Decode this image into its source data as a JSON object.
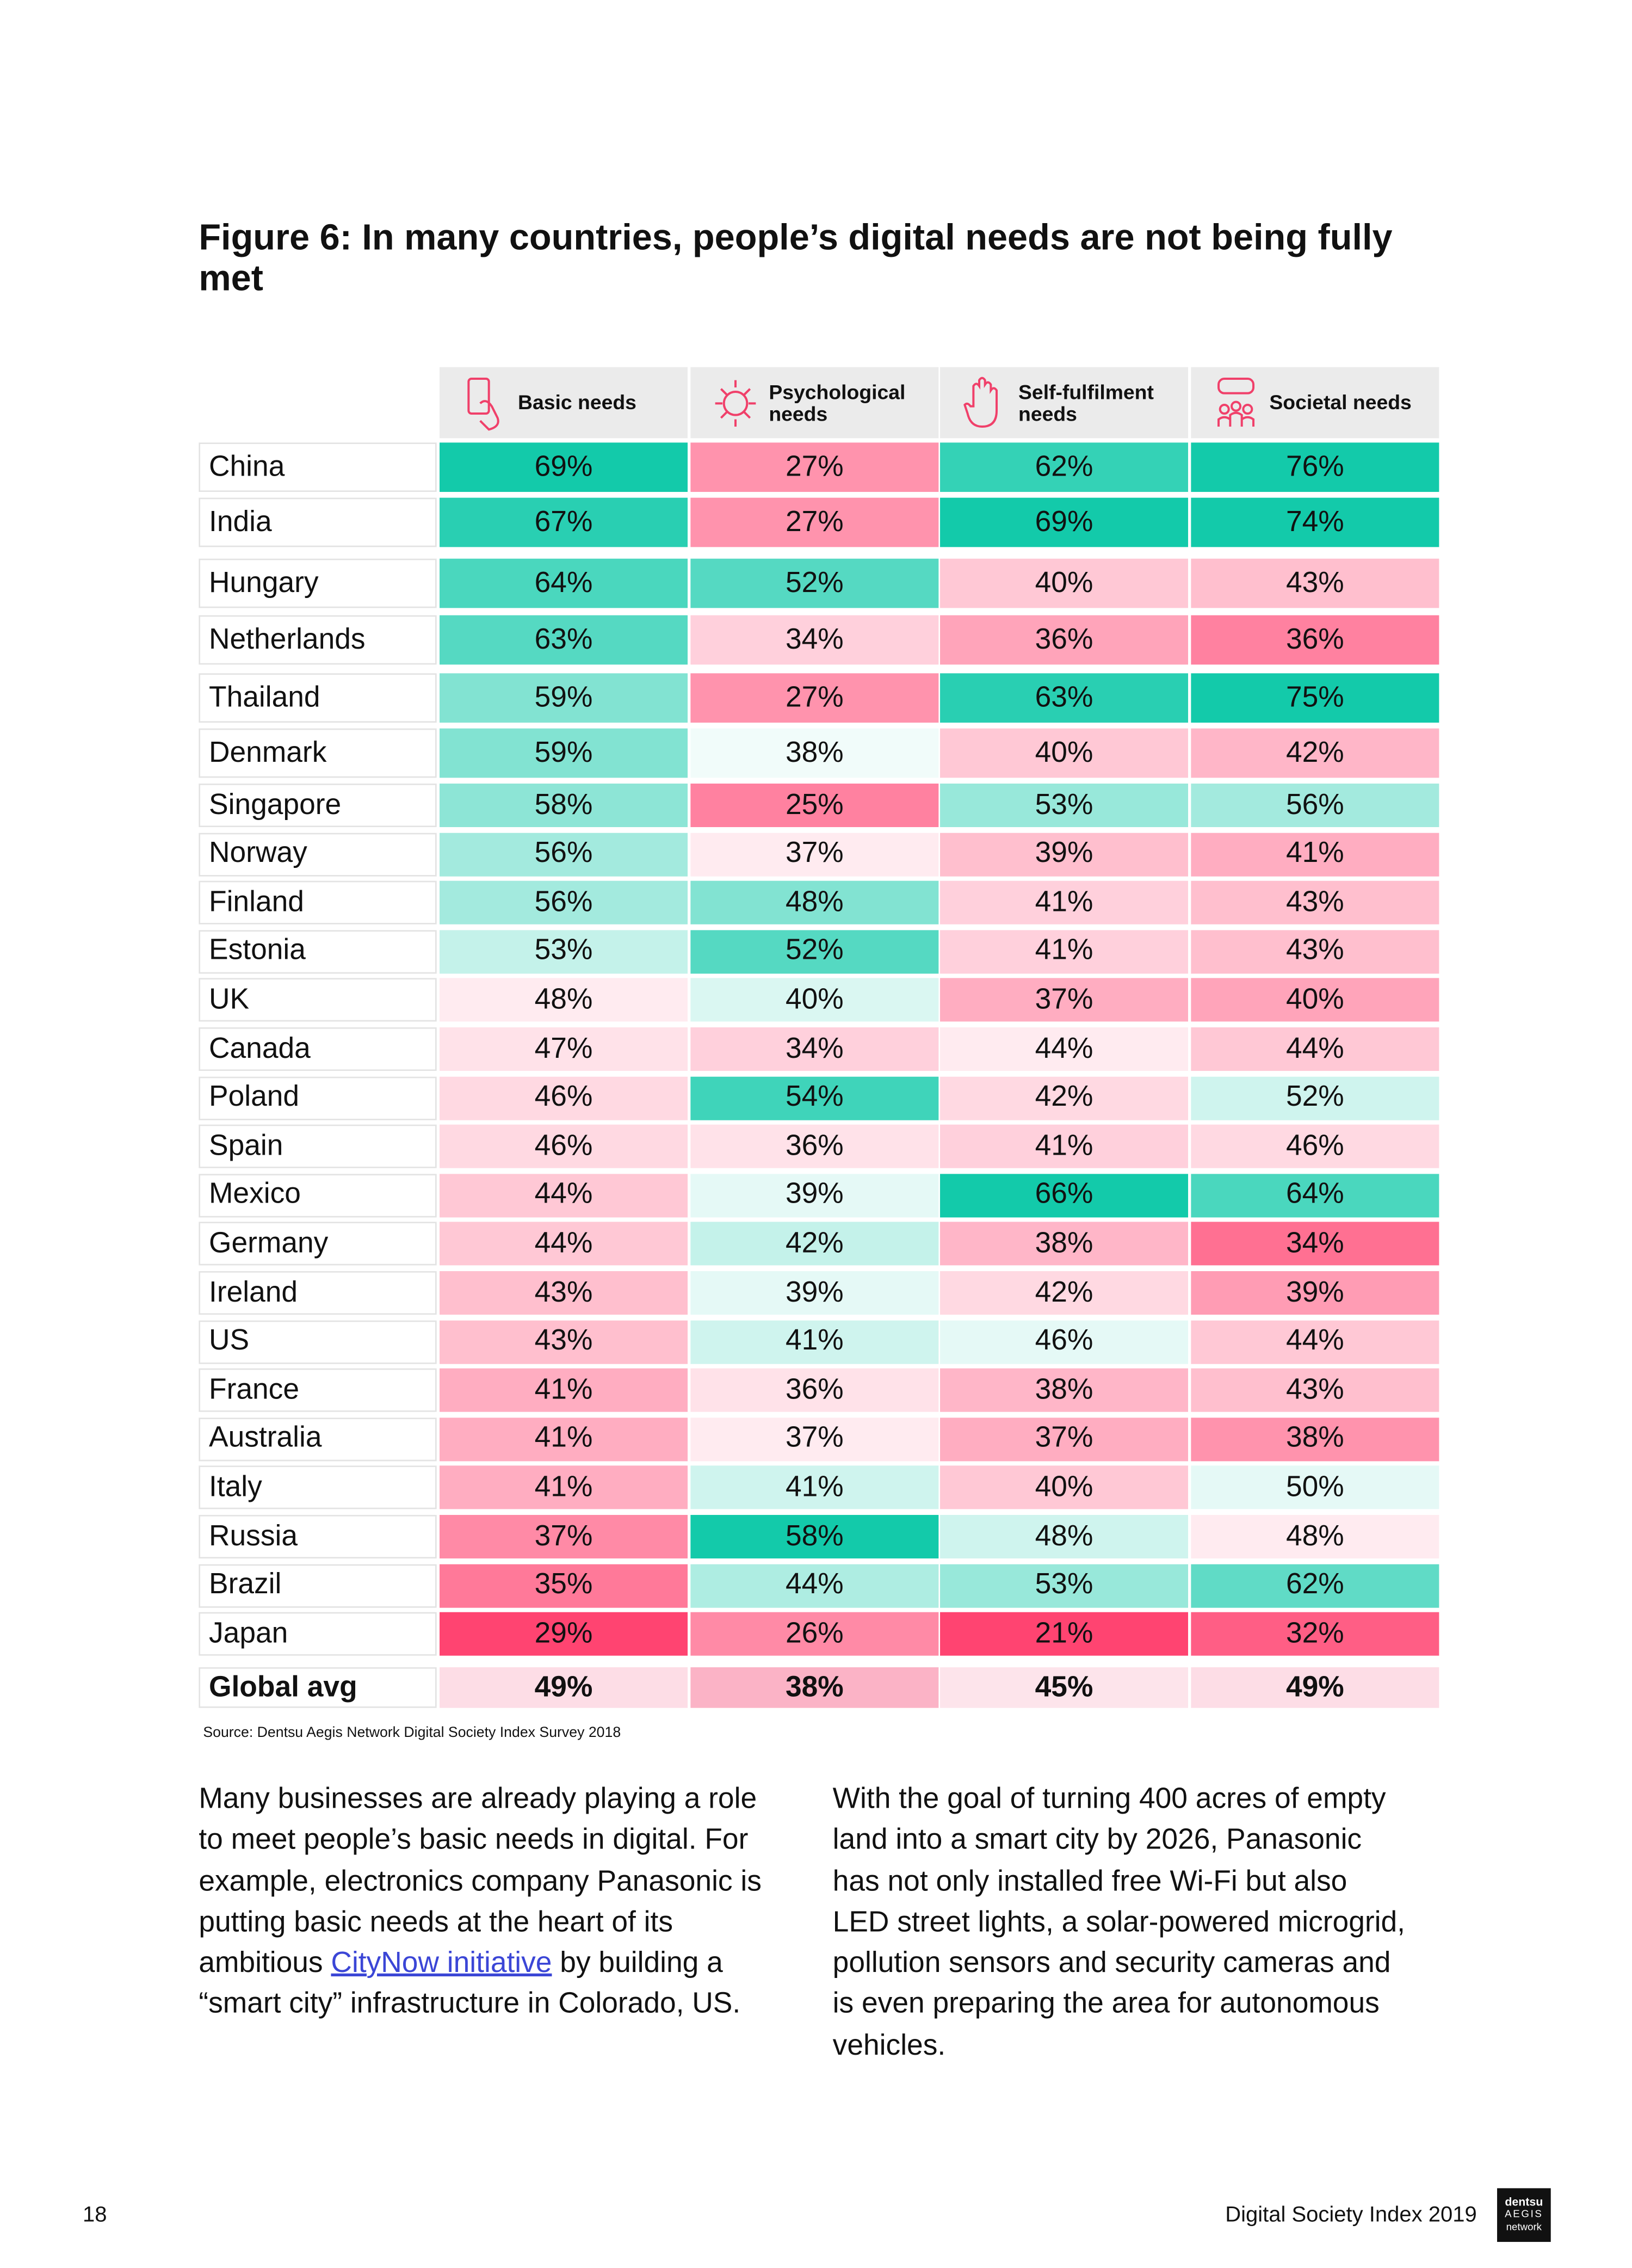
{
  "figure": {
    "title": "Figure 6: In many countries, people’s digital needs are not being fully met",
    "source": "Source: Dentsu Aegis Network Digital Society Index Survey 2018"
  },
  "table": {
    "header": [
      "Basic needs",
      "Psychological needs",
      "Self-fulfilment needs",
      "Societal needs"
    ],
    "rows": [
      [
        "China",
        "69%",
        "27%",
        "62%",
        "76%"
      ],
      [
        "India",
        "67%",
        "27%",
        "69%",
        "74%"
      ],
      [
        "Hungary",
        "64%",
        "52%",
        "40%",
        "43%"
      ],
      [
        "Netherlands",
        "63%",
        "34%",
        "36%",
        "36%"
      ],
      [
        "Thailand",
        "59%",
        "27%",
        "63%",
        "75%"
      ],
      [
        "Denmark",
        "59%",
        "38%",
        "40%",
        "42%"
      ],
      [
        "Singapore",
        "58%",
        "25%",
        "53%",
        "56%"
      ],
      [
        "Norway",
        "56%",
        "37%",
        "39%",
        "41%"
      ],
      [
        "Finland",
        "56%",
        "48%",
        "41%",
        "43%"
      ],
      [
        "Estonia",
        "53%",
        "52%",
        "41%",
        "43%"
      ],
      [
        "UK",
        "48%",
        "40%",
        "37%",
        "40%"
      ],
      [
        "Canada",
        "47%",
        "34%",
        "44%",
        "44%"
      ],
      [
        "Poland",
        "46%",
        "54%",
        "42%",
        "52%"
      ],
      [
        "Spain",
        "46%",
        "36%",
        "41%",
        "46%"
      ],
      [
        "Mexico",
        "44%",
        "39%",
        "66%",
        "64%"
      ],
      [
        "Germany",
        "44%",
        "42%",
        "38%",
        "34%"
      ],
      [
        "Ireland",
        "43%",
        "39%",
        "42%",
        "39%"
      ],
      [
        "US",
        "43%",
        "41%",
        "46%",
        "44%"
      ],
      [
        "France",
        "41%",
        "36%",
        "38%",
        "43%"
      ],
      [
        "Australia",
        "41%",
        "37%",
        "37%",
        "38%"
      ],
      [
        "Italy",
        "41%",
        "41%",
        "40%",
        "50%"
      ],
      [
        "Russia",
        "37%",
        "58%",
        "48%",
        "48%"
      ],
      [
        "Brazil",
        "35%",
        "44%",
        "53%",
        "62%"
      ],
      [
        "Japan",
        "29%",
        "26%",
        "21%",
        "32%"
      ]
    ],
    "footer_row": [
      "Global avg",
      "49%",
      "38%",
      "45%",
      "49%"
    ]
  },
  "body": {
    "left_before": "Many businesses are already playing a role to meet people’s basic needs in digital. For example, electronics company Panasonic is putting basic needs at the heart of its ambitious ",
    "left_link": "CityNow initiative",
    "left_after": " by building a “smart city” infrastructure in Colorado, US.",
    "right": "With the goal of turning 400 acres of empty land into a smart city by 2026, Panasonic has not only installed free Wi-Fi but also LED street lights, a solar-powered microgrid, pollution sensors and security cameras and is even preparing the area for autonomous vehicles."
  },
  "footer": {
    "page": "18",
    "publication": "Digital Society Index 2019",
    "logo": [
      "dentsu",
      "AEGIS",
      "network"
    ]
  }
}
